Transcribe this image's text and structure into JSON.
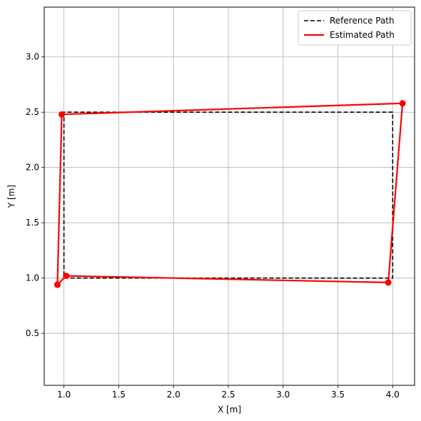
{
  "chart_data": {
    "type": "line",
    "title": "",
    "xlabel": "X [m]",
    "ylabel": "Y [m]",
    "xlim": [
      0.82,
      4.2
    ],
    "ylim": [
      0.03,
      3.45
    ],
    "xticks": [
      1.0,
      1.5,
      2.0,
      2.5,
      3.0,
      3.5,
      4.0
    ],
    "xtick_labels": [
      "1.0",
      "1.5",
      "2.0",
      "2.5",
      "3.0",
      "3.5",
      "4.0"
    ],
    "yticks": [
      0.5,
      1.0,
      1.5,
      2.0,
      2.5,
      3.0
    ],
    "ytick_labels": [
      "0.5",
      "1.0",
      "1.5",
      "2.0",
      "2.5",
      "3.0"
    ],
    "grid": true,
    "legend_position": "top-right",
    "series": [
      {
        "name": "Reference Path",
        "style": "dashed",
        "color": "#000000",
        "markers": false,
        "x": [
          1.0,
          4.0,
          4.0,
          1.0,
          1.0
        ],
        "y": [
          1.0,
          1.0,
          2.5,
          2.5,
          1.0
        ]
      },
      {
        "name": "Estimated Path",
        "style": "solid",
        "color": "#ff0000",
        "markers": true,
        "x": [
          0.94,
          1.02,
          3.96,
          4.09,
          0.98,
          0.94
        ],
        "y": [
          0.94,
          1.02,
          0.96,
          2.58,
          2.48,
          0.94
        ]
      }
    ]
  }
}
